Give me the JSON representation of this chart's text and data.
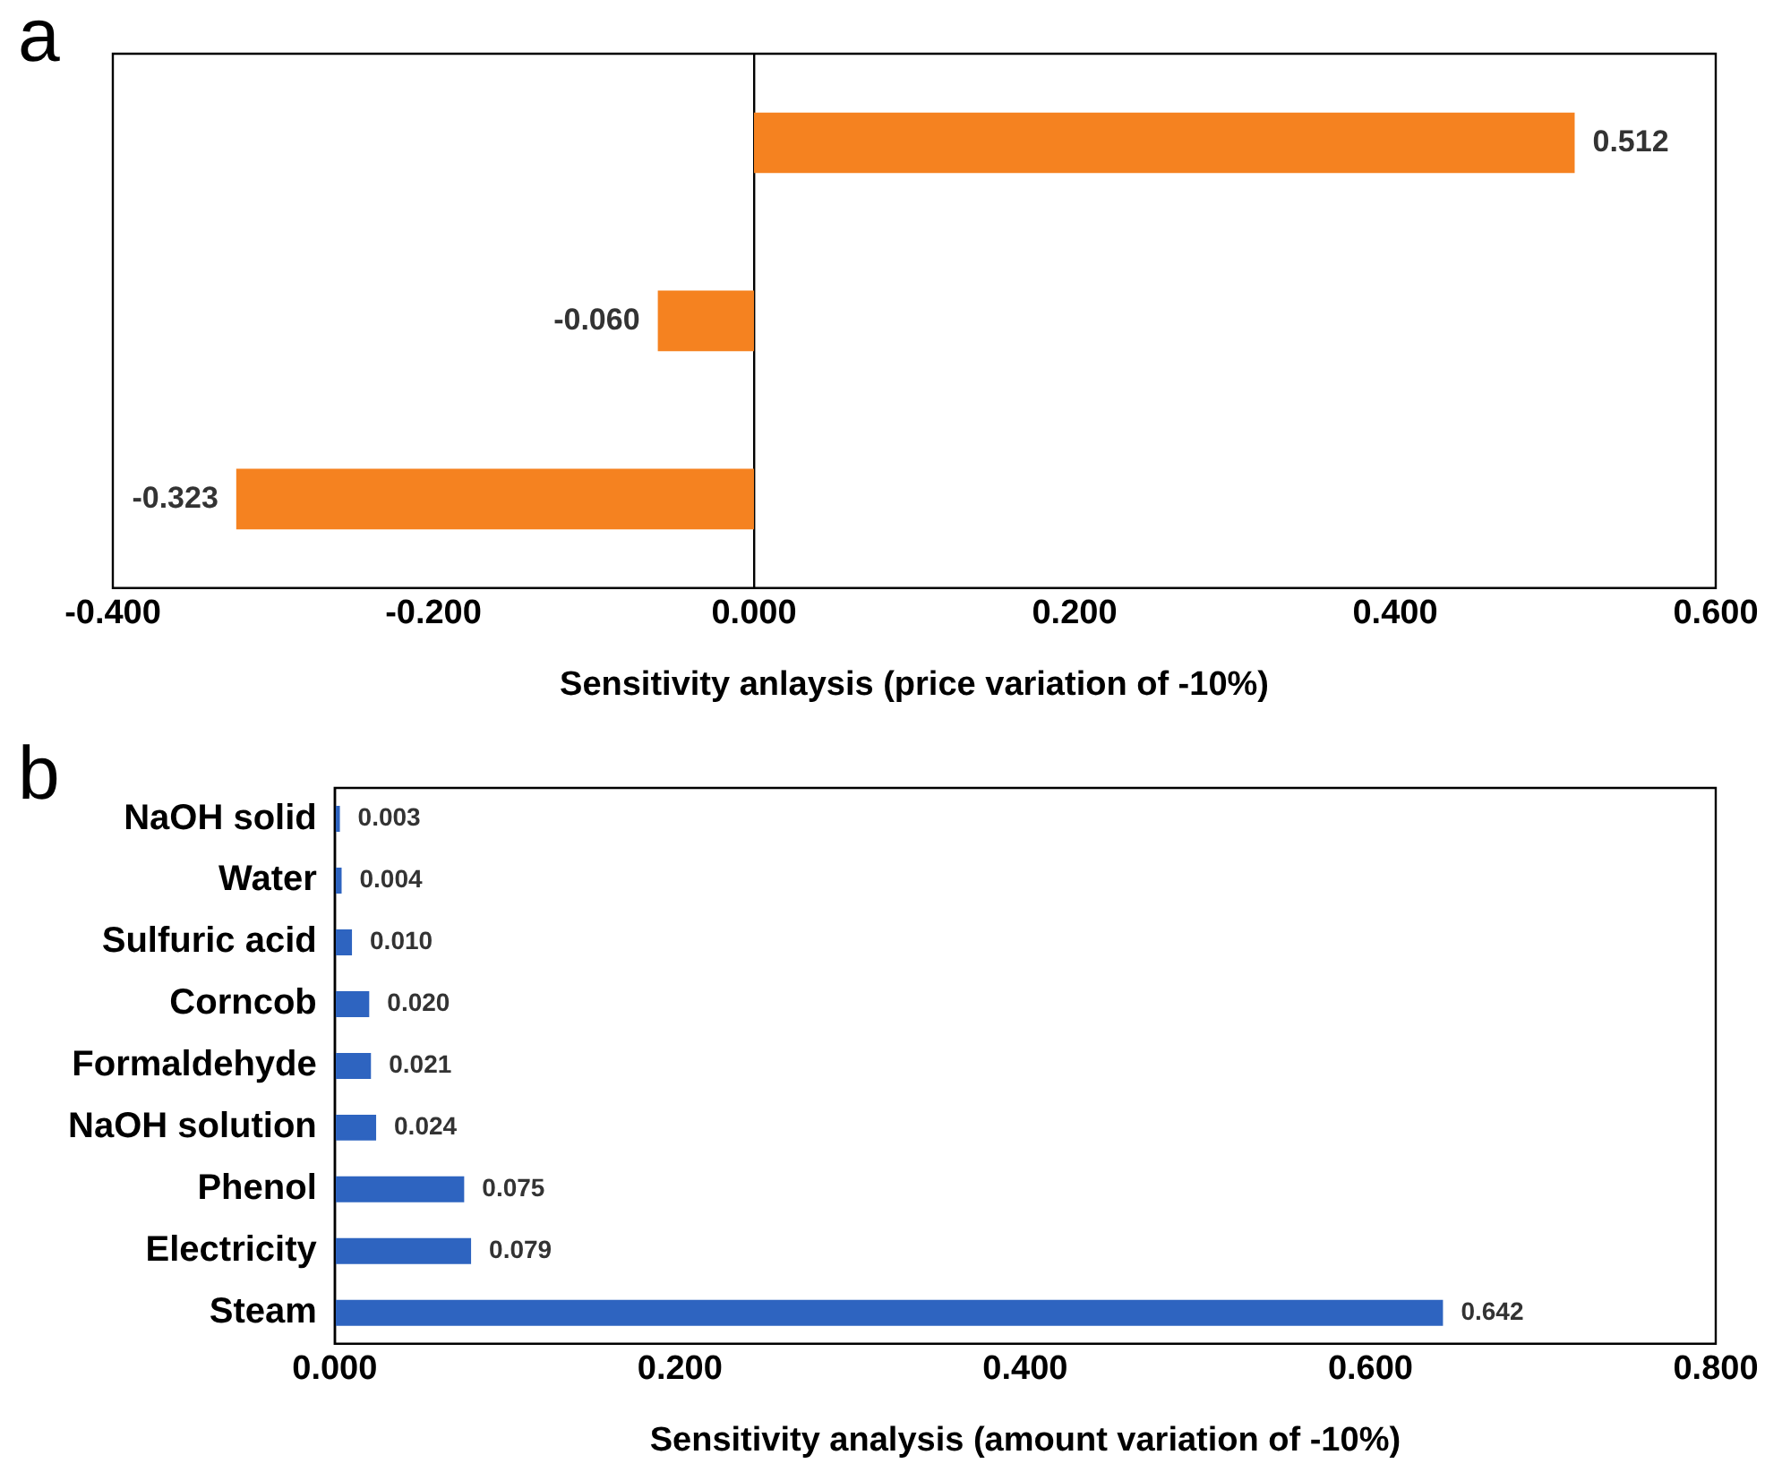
{
  "chart_data": [
    {
      "type": "bar",
      "title": "a",
      "orientation": "horizontal",
      "categories": [
        null,
        null,
        null
      ],
      "values": [
        0.512,
        -0.06,
        -0.323
      ],
      "value_labels": [
        "0.512",
        "-0.060",
        "-0.323"
      ],
      "color": "#f58220",
      "xlabel": "Sensitivity anlaysis (price variation of -10%)",
      "xlim": [
        -0.4,
        0.6
      ],
      "xticks": [
        {
          "value": -0.4,
          "label": "-0.400"
        },
        {
          "value": -0.2,
          "label": "-0.200"
        },
        {
          "value": 0,
          "label": "0.000"
        },
        {
          "value": 0.2,
          "label": "0.200"
        },
        {
          "value": 0.4,
          "label": "0.400"
        },
        {
          "value": 0.6,
          "label": "0.600"
        }
      ],
      "legend": false
    },
    {
      "type": "bar",
      "title": "b",
      "orientation": "horizontal",
      "categories": [
        "NaOH solid",
        "Water",
        "Sulfuric acid",
        "Corncob",
        "Formaldehyde",
        "NaOH solution",
        "Phenol",
        "Electricity",
        "Steam"
      ],
      "values": [
        0.003,
        0.004,
        0.01,
        0.02,
        0.021,
        0.024,
        0.075,
        0.079,
        0.642
      ],
      "value_labels": [
        "0.003",
        "0.004",
        "0.010",
        "0.020",
        "0.021",
        "0.024",
        "0.075",
        "0.079",
        "0.642"
      ],
      "color": "#2e64c0",
      "xlabel": "Sensitivity analysis (amount variation of -10%)",
      "xlim": [
        0,
        0.8
      ],
      "xticks": [
        {
          "value": 0,
          "label": "0.000"
        },
        {
          "value": 0.2,
          "label": "0.200"
        },
        {
          "value": 0.4,
          "label": "0.400"
        },
        {
          "value": 0.6,
          "label": "0.600"
        },
        {
          "value": 0.8,
          "label": "0.800"
        }
      ],
      "legend": false
    }
  ]
}
